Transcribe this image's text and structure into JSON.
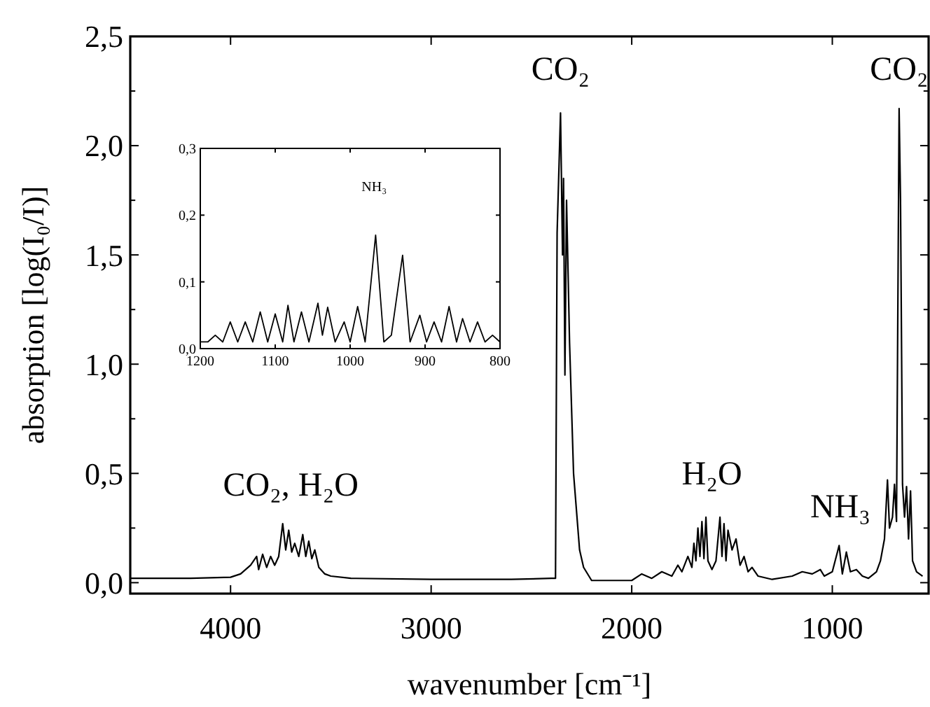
{
  "chart_data": [
    {
      "type": "line",
      "xlabel": "wavenumber [cm⁻¹]",
      "ylabel": "absorption [log(I₀/I)]",
      "xlim": [
        4500,
        520
      ],
      "ylim": [
        -0.05,
        2.5
      ],
      "xticks": [
        4000,
        3000,
        2000,
        1000
      ],
      "yticks": [
        {
          "value": 0,
          "label": "0,0"
        },
        {
          "value": 0.25,
          "label": null
        },
        {
          "value": 0.5,
          "label": "0,5"
        },
        {
          "value": 0.75,
          "label": null
        },
        {
          "value": 1,
          "label": "1,0"
        },
        {
          "value": 1.25,
          "label": null
        },
        {
          "value": 1.5,
          "label": "1,5"
        },
        {
          "value": 1.75,
          "label": null
        },
        {
          "value": 2,
          "label": "2,0"
        },
        {
          "value": 2.25,
          "label": null
        },
        {
          "value": 2.5,
          "label": "2,5"
        }
      ],
      "grid": false,
      "marker": "none",
      "line_style": "solid",
      "annotations": [
        "CO₂",
        "CO₂",
        "CO₂, H₂O",
        "H₂O",
        "NH₃"
      ],
      "series": [
        {
          "color": "#000000",
          "x": [
            4500,
            4200,
            4000,
            3950,
            3900,
            3870,
            3860,
            3840,
            3820,
            3800,
            3780,
            3760,
            3740,
            3725,
            3710,
            3695,
            3680,
            3660,
            3640,
            3625,
            3610,
            3595,
            3580,
            3560,
            3530,
            3500,
            3400,
            3000,
            2600,
            2400,
            2380,
            2372,
            2355,
            2345,
            2340,
            2333,
            2325,
            2310,
            2290,
            2260,
            2240,
            2200,
            2000,
            1950,
            1900,
            1850,
            1800,
            1770,
            1750,
            1720,
            1700,
            1690,
            1680,
            1670,
            1660,
            1650,
            1640,
            1630,
            1620,
            1600,
            1580,
            1560,
            1550,
            1540,
            1530,
            1520,
            1500,
            1480,
            1460,
            1440,
            1420,
            1400,
            1370,
            1300,
            1200,
            1150,
            1100,
            1060,
            1040,
            1000,
            966,
            950,
            930,
            910,
            880,
            850,
            820,
            780,
            760,
            740,
            725,
            715,
            700,
            690,
            680,
            667,
            660,
            650,
            640,
            630,
            620,
            610,
            600,
            580,
            550
          ],
          "values": [
            0.02,
            0.02,
            0.025,
            0.04,
            0.08,
            0.12,
            0.06,
            0.13,
            0.07,
            0.12,
            0.08,
            0.12,
            0.27,
            0.15,
            0.24,
            0.14,
            0.18,
            0.12,
            0.22,
            0.12,
            0.19,
            0.11,
            0.15,
            0.07,
            0.04,
            0.03,
            0.02,
            0.015,
            0.015,
            0.02,
            0.02,
            1.6,
            2.15,
            1.5,
            1.85,
            0.95,
            1.75,
            1.1,
            0.5,
            0.15,
            0.07,
            0.01,
            0.01,
            0.04,
            0.02,
            0.05,
            0.03,
            0.08,
            0.05,
            0.12,
            0.07,
            0.18,
            0.1,
            0.25,
            0.12,
            0.28,
            0.11,
            0.3,
            0.1,
            0.06,
            0.1,
            0.3,
            0.12,
            0.27,
            0.1,
            0.24,
            0.15,
            0.2,
            0.08,
            0.12,
            0.05,
            0.07,
            0.03,
            0.015,
            0.03,
            0.05,
            0.04,
            0.06,
            0.03,
            0.05,
            0.17,
            0.04,
            0.14,
            0.05,
            0.06,
            0.03,
            0.02,
            0.05,
            0.1,
            0.2,
            0.47,
            0.25,
            0.3,
            0.45,
            0.28,
            2.17,
            1.75,
            0.45,
            0.3,
            0.44,
            0.2,
            0.42,
            0.1,
            0.05,
            0.03
          ]
        }
      ]
    },
    {
      "type": "line",
      "xlim": [
        1200,
        800
      ],
      "ylim": [
        0,
        0.3
      ],
      "xticks": [
        1200,
        1100,
        1000,
        900,
        800
      ],
      "yticks": [
        {
          "value": 0,
          "label": "0,0"
        },
        {
          "value": 0.1,
          "label": "0,1"
        },
        {
          "value": 0.2,
          "label": "0,2"
        },
        {
          "value": 0.3,
          "label": "0,3"
        }
      ],
      "grid": false,
      "marker": "none",
      "line_style": "solid",
      "annotations": [
        "NH₃"
      ],
      "series": [
        {
          "color": "#000000",
          "x": [
            1200,
            1190,
            1180,
            1170,
            1160,
            1150,
            1140,
            1130,
            1120,
            1110,
            1100,
            1090,
            1083,
            1075,
            1065,
            1055,
            1043,
            1037,
            1030,
            1020,
            1008,
            1000,
            990,
            980,
            966,
            955,
            945,
            930,
            920,
            907,
            898,
            888,
            878,
            868,
            858,
            850,
            840,
            830,
            820,
            810,
            800
          ],
          "values": [
            0.01,
            0.01,
            0.02,
            0.01,
            0.04,
            0.01,
            0.04,
            0.01,
            0.055,
            0.01,
            0.052,
            0.01,
            0.065,
            0.01,
            0.055,
            0.01,
            0.068,
            0.02,
            0.062,
            0.01,
            0.04,
            0.01,
            0.063,
            0.01,
            0.17,
            0.01,
            0.02,
            0.14,
            0.01,
            0.05,
            0.01,
            0.04,
            0.01,
            0.063,
            0.01,
            0.045,
            0.01,
            0.04,
            0.01,
            0.02,
            0.01
          ]
        }
      ]
    }
  ]
}
